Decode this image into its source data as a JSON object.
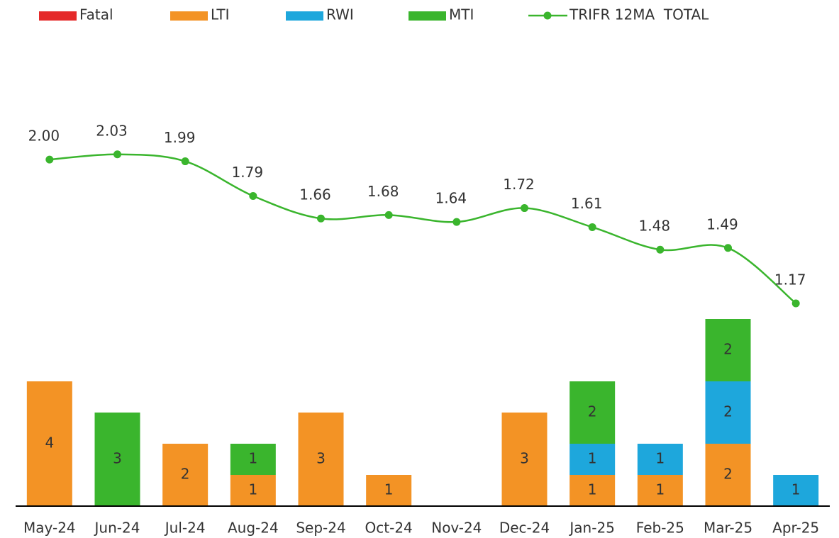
{
  "chart_data": {
    "type": "bar_line",
    "categories": [
      "May-24",
      "Jun-24",
      "Jul-24",
      "Aug-24",
      "Sep-24",
      "Oct-24",
      "Nov-24",
      "Dec-24",
      "Jan-25",
      "Feb-25",
      "Mar-25",
      "Apr-25"
    ],
    "series": [
      {
        "name": "Fatal",
        "color": "#e52a2a",
        "values": [
          0,
          0,
          0,
          0,
          0,
          0,
          0,
          0,
          0,
          0,
          0,
          0
        ]
      },
      {
        "name": "LTI",
        "color": "#f39325",
        "values": [
          4,
          0,
          2,
          1,
          3,
          1,
          0,
          3,
          1,
          1,
          2,
          0
        ]
      },
      {
        "name": "RWI",
        "color": "#1ea7dc",
        "values": [
          0,
          0,
          0,
          0,
          0,
          0,
          0,
          0,
          1,
          1,
          2,
          1
        ]
      },
      {
        "name": "MTI",
        "color": "#3ab52d",
        "values": [
          0,
          3,
          0,
          1,
          0,
          0,
          0,
          0,
          2,
          0,
          2,
          0
        ]
      },
      {
        "name": "TRIFR 12MA  TOTAL",
        "color": "#3ab52d",
        "axis": "y2",
        "type": "line",
        "values": [
          2.0,
          2.03,
          1.99,
          1.79,
          1.66,
          1.68,
          1.64,
          1.72,
          1.61,
          1.48,
          1.49,
          1.17
        ],
        "value_labels": [
          "2.00",
          "2.03",
          "1.99",
          "1.79",
          "1.66",
          "1.68",
          "1.64",
          "1.72",
          "1.61",
          "1.48",
          "1.49",
          "1.17"
        ]
      }
    ],
    "ylim": [
      0,
      15
    ],
    "y2lim": [
      0,
      2.7
    ],
    "stacked": true,
    "legend": "top"
  }
}
